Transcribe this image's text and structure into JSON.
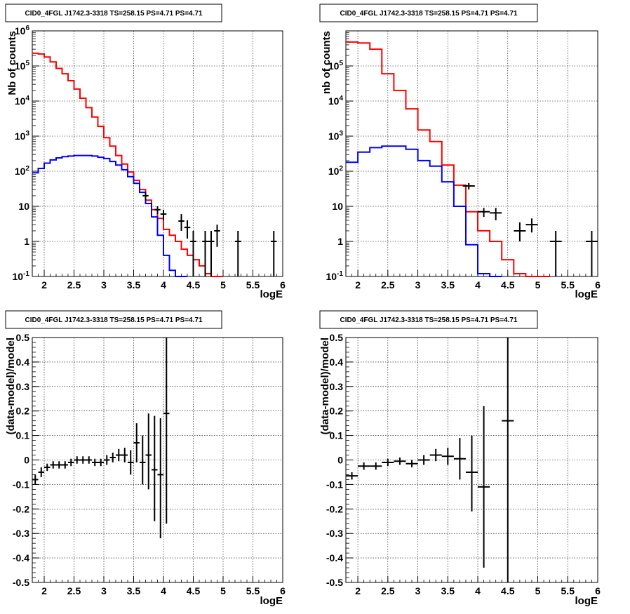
{
  "chart_data": [
    {
      "type": "line",
      "title": "CID0_4FGL J1742.3-3318 TS=258.15 PS=4.71 PS=4.71",
      "xlabel": "logE",
      "ylabel": "Nb of counts",
      "xlim": [
        1.8,
        6.0
      ],
      "ylim": [
        0.1,
        1000000
      ],
      "yscale": "log",
      "grid": true,
      "x_ticks": [
        "2",
        "2.5",
        "3",
        "3.5",
        "4",
        "4.5",
        "5",
        "5.5",
        "6"
      ],
      "y_ticks": [
        "10^-1",
        "1",
        "10",
        "10^2",
        "10^3",
        "10^4",
        "10^5",
        "10^6"
      ],
      "bin_edges": [
        1.8,
        1.9,
        2.0,
        2.1,
        2.2,
        2.3,
        2.4,
        2.5,
        2.6,
        2.7,
        2.8,
        2.9,
        3.0,
        3.1,
        3.2,
        3.3,
        3.4,
        3.5,
        3.6,
        3.7,
        3.8,
        3.9,
        4.0,
        4.1,
        4.2,
        4.3,
        4.4,
        4.5,
        4.6,
        4.7,
        4.8,
        4.9,
        5.0
      ],
      "series": [
        {
          "color": "#ff0000",
          "values": [
            230000,
            220000,
            180000,
            130000,
            85000,
            60000,
            38000,
            22000,
            12000,
            6500,
            3500,
            1900,
            900,
            520,
            280,
            160,
            95,
            55,
            30,
            15,
            8,
            4.5,
            2.2,
            1.5,
            1.0,
            0.6,
            0.4,
            0.3,
            0.2,
            0.12,
            0.1,
            0.1
          ]
        },
        {
          "color": "#0000ff",
          "values": [
            90,
            120,
            170,
            210,
            240,
            260,
            270,
            280,
            280,
            280,
            270,
            250,
            230,
            190,
            150,
            110,
            70,
            45,
            25,
            12,
            5,
            1.5,
            0.4,
            0.15,
            0.1,
            0.1
          ]
        }
      ],
      "data_points": [
        {
          "x": 3.7,
          "y": 20,
          "xerr": 0.05,
          "ylo": 15,
          "yhi": 25
        },
        {
          "x": 3.9,
          "y": 8,
          "xerr": 0.05,
          "ylo": 6,
          "yhi": 10
        },
        {
          "x": 4.0,
          "y": 6,
          "xerr": 0.05,
          "ylo": 4,
          "yhi": 8
        },
        {
          "x": 4.3,
          "y": 3.8,
          "xerr": 0.05,
          "ylo": 2,
          "yhi": 6
        },
        {
          "x": 4.4,
          "y": 2.5,
          "xerr": 0.05,
          "ylo": 1.2,
          "yhi": 4
        },
        {
          "x": 4.5,
          "y": 1.0,
          "xerr": 0.05,
          "ylo": 0.1,
          "yhi": 2
        },
        {
          "x": 4.7,
          "y": 1.0,
          "xerr": 0.05,
          "ylo": 0.1,
          "yhi": 2
        },
        {
          "x": 4.8,
          "y": 1.0,
          "xerr": 0.05,
          "ylo": 0.1,
          "yhi": 2
        },
        {
          "x": 4.9,
          "y": 2.0,
          "xerr": 0.05,
          "ylo": 0.7,
          "yhi": 3
        },
        {
          "x": 5.25,
          "y": 1.0,
          "xerr": 0.05,
          "ylo": 0.1,
          "yhi": 2
        },
        {
          "x": 5.85,
          "y": 1.0,
          "xerr": 0.05,
          "ylo": 0.1,
          "yhi": 2
        }
      ]
    },
    {
      "type": "line",
      "title": "CID0_4FGL J1742.3-3318 TS=258.15 PS=4.71 PS=4.71",
      "xlabel": "logE",
      "ylabel": "nb of counts",
      "xlim": [
        1.8,
        6.0
      ],
      "ylim": [
        0.1,
        1000000
      ],
      "yscale": "log",
      "grid": true,
      "x_ticks": [
        "2",
        "2.5",
        "3",
        "3.5",
        "4",
        "4.5",
        "5",
        "5.5",
        "6"
      ],
      "y_ticks": [
        "10^-1",
        "1",
        "10",
        "10^2",
        "10^3",
        "10^4",
        "10^5"
      ],
      "bin_edges": [
        1.8,
        2.0,
        2.2,
        2.4,
        2.6,
        2.8,
        3.0,
        3.2,
        3.4,
        3.6,
        3.8,
        4.0,
        4.2,
        4.4,
        4.6,
        4.8,
        5.0,
        5.2
      ],
      "series": [
        {
          "color": "#ff0000",
          "values": [
            480000,
            450000,
            300000,
            60000,
            20000,
            6000,
            1500,
            700,
            150,
            40,
            7,
            2,
            1,
            0.3,
            0.12,
            0.1,
            0.1
          ]
        },
        {
          "color": "#0000ff",
          "values": [
            180,
            350,
            470,
            520,
            520,
            420,
            200,
            140,
            50,
            10,
            0.8,
            0.12,
            0.1
          ]
        }
      ],
      "data_points": [
        {
          "x": 3.85,
          "y": 38,
          "xerr": 0.1,
          "ylo": 30,
          "yhi": 46
        },
        {
          "x": 4.1,
          "y": 7,
          "xerr": 0.1,
          "ylo": 5,
          "yhi": 9
        },
        {
          "x": 4.3,
          "y": 6.5,
          "xerr": 0.1,
          "ylo": 4,
          "yhi": 9
        },
        {
          "x": 4.7,
          "y": 2.0,
          "xerr": 0.1,
          "ylo": 1,
          "yhi": 3.5
        },
        {
          "x": 4.9,
          "y": 3.0,
          "xerr": 0.1,
          "ylo": 1.8,
          "yhi": 4.5
        },
        {
          "x": 5.3,
          "y": 1.0,
          "xerr": 0.1,
          "ylo": 0.1,
          "yhi": 2
        },
        {
          "x": 5.9,
          "y": 1.0,
          "xerr": 0.1,
          "ylo": 0.1,
          "yhi": 2
        }
      ]
    },
    {
      "type": "scatter",
      "title": "CID0_4FGL J1742.3-3318 TS=258.15 PS=4.71 PS=4.71",
      "xlabel": "logE",
      "ylabel": "(data-model)/model",
      "xlim": [
        1.8,
        6.0
      ],
      "ylim": [
        -0.5,
        0.5
      ],
      "grid": true,
      "x_ticks": [
        "2",
        "2.5",
        "3",
        "3.5",
        "4",
        "4.5",
        "5",
        "5.5",
        "6"
      ],
      "y_ticks": [
        "-0.5",
        "-0.4",
        "-0.3",
        "-0.2",
        "-0.1",
        "0",
        "0.1",
        "0.2",
        "0.3",
        "0.4",
        "0.5"
      ],
      "data_points": [
        {
          "x": 1.85,
          "y": -0.08,
          "xerr": 0.05,
          "ylo": -0.1,
          "yhi": -0.06
        },
        {
          "x": 1.95,
          "y": -0.05,
          "xerr": 0.05,
          "ylo": -0.07,
          "yhi": -0.03
        },
        {
          "x": 2.05,
          "y": -0.03,
          "xerr": 0.05,
          "ylo": -0.045,
          "yhi": -0.015
        },
        {
          "x": 2.15,
          "y": -0.02,
          "xerr": 0.05,
          "ylo": -0.035,
          "yhi": -0.005
        },
        {
          "x": 2.25,
          "y": -0.02,
          "xerr": 0.05,
          "ylo": -0.035,
          "yhi": -0.005
        },
        {
          "x": 2.35,
          "y": -0.02,
          "xerr": 0.05,
          "ylo": -0.035,
          "yhi": -0.005
        },
        {
          "x": 2.45,
          "y": -0.01,
          "xerr": 0.05,
          "ylo": -0.025,
          "yhi": 0.005
        },
        {
          "x": 2.55,
          "y": 0.0,
          "xerr": 0.05,
          "ylo": -0.015,
          "yhi": 0.015
        },
        {
          "x": 2.65,
          "y": 0.0,
          "xerr": 0.05,
          "ylo": -0.015,
          "yhi": 0.015
        },
        {
          "x": 2.75,
          "y": 0.0,
          "xerr": 0.05,
          "ylo": -0.015,
          "yhi": 0.015
        },
        {
          "x": 2.85,
          "y": -0.01,
          "xerr": 0.05,
          "ylo": -0.025,
          "yhi": 0.005
        },
        {
          "x": 2.95,
          "y": -0.01,
          "xerr": 0.05,
          "ylo": -0.025,
          "yhi": 0.005
        },
        {
          "x": 3.05,
          "y": 0.0,
          "xerr": 0.05,
          "ylo": -0.02,
          "yhi": 0.02
        },
        {
          "x": 3.15,
          "y": 0.01,
          "xerr": 0.05,
          "ylo": -0.01,
          "yhi": 0.03
        },
        {
          "x": 3.25,
          "y": 0.02,
          "xerr": 0.05,
          "ylo": -0.005,
          "yhi": 0.045
        },
        {
          "x": 3.35,
          "y": 0.02,
          "xerr": 0.05,
          "ylo": -0.01,
          "yhi": 0.05
        },
        {
          "x": 3.45,
          "y": -0.01,
          "xerr": 0.05,
          "ylo": -0.06,
          "yhi": 0.04
        },
        {
          "x": 3.55,
          "y": 0.07,
          "xerr": 0.05,
          "ylo": -0.01,
          "yhi": 0.15
        },
        {
          "x": 3.65,
          "y": -0.01,
          "xerr": 0.05,
          "ylo": -0.1,
          "yhi": 0.1
        },
        {
          "x": 3.75,
          "y": 0.02,
          "xerr": 0.05,
          "ylo": -0.12,
          "yhi": 0.19
        },
        {
          "x": 3.85,
          "y": -0.04,
          "xerr": 0.05,
          "ylo": -0.25,
          "yhi": 0.18
        },
        {
          "x": 3.95,
          "y": -0.06,
          "xerr": 0.05,
          "ylo": -0.32,
          "yhi": 0.17
        },
        {
          "x": 4.05,
          "y": 0.19,
          "xerr": 0.05,
          "ylo": -0.26,
          "yhi": 0.5
        }
      ]
    },
    {
      "type": "scatter",
      "title": "CID0_4FGL J1742.3-3318 TS=258.15 PS=4.71 PS=4.71",
      "xlabel": "logE",
      "ylabel": "(data-model)/model",
      "xlim": [
        1.8,
        6.0
      ],
      "ylim": [
        -0.5,
        0.5
      ],
      "grid": true,
      "x_ticks": [
        "2",
        "2.5",
        "3",
        "3.5",
        "4",
        "4.5",
        "5",
        "5.5",
        "6"
      ],
      "y_ticks": [
        "-0.5",
        "-0.4",
        "-0.3",
        "-0.2",
        "-0.1",
        "0",
        "0.1",
        "0.2",
        "0.3",
        "0.4",
        "0.5"
      ],
      "data_points": [
        {
          "x": 1.9,
          "y": -0.065,
          "xerr": 0.1,
          "ylo": -0.08,
          "yhi": -0.05
        },
        {
          "x": 2.1,
          "y": -0.025,
          "xerr": 0.1,
          "ylo": -0.04,
          "yhi": -0.01
        },
        {
          "x": 2.3,
          "y": -0.025,
          "xerr": 0.1,
          "ylo": -0.04,
          "yhi": -0.01
        },
        {
          "x": 2.5,
          "y": -0.01,
          "xerr": 0.1,
          "ylo": -0.025,
          "yhi": 0.005
        },
        {
          "x": 2.7,
          "y": -0.005,
          "xerr": 0.1,
          "ylo": -0.02,
          "yhi": 0.01
        },
        {
          "x": 2.9,
          "y": -0.015,
          "xerr": 0.1,
          "ylo": -0.03,
          "yhi": 0.0
        },
        {
          "x": 3.1,
          "y": 0.0,
          "xerr": 0.1,
          "ylo": -0.02,
          "yhi": 0.02
        },
        {
          "x": 3.3,
          "y": 0.02,
          "xerr": 0.1,
          "ylo": -0.005,
          "yhi": 0.045
        },
        {
          "x": 3.5,
          "y": 0.015,
          "xerr": 0.1,
          "ylo": -0.02,
          "yhi": 0.05
        },
        {
          "x": 3.7,
          "y": 0.005,
          "xerr": 0.1,
          "ylo": -0.08,
          "yhi": 0.09
        },
        {
          "x": 3.9,
          "y": -0.05,
          "xerr": 0.1,
          "ylo": -0.21,
          "yhi": 0.1
        },
        {
          "x": 4.1,
          "y": -0.11,
          "xerr": 0.1,
          "ylo": -0.44,
          "yhi": 0.22
        },
        {
          "x": 4.5,
          "y": 0.16,
          "xerr": 0.1,
          "ylo": -0.5,
          "yhi": 0.5
        }
      ]
    }
  ]
}
